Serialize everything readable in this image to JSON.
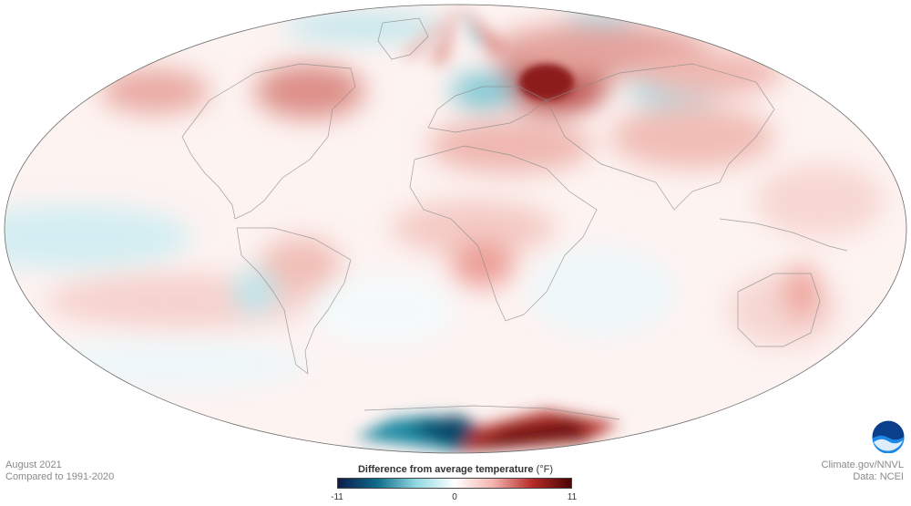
{
  "map": {
    "date_label": "August 2021",
    "baseline_label": "Compared to 1991-2020",
    "credit_source": "Climate.gov/NNVL",
    "credit_data": "Data: NCEI",
    "logo_text": "NOAA"
  },
  "legend": {
    "title_bold": "Difference from average temperature",
    "title_unit": "(°F)",
    "min_label": "-11",
    "mid_label": "0",
    "max_label": "11",
    "colors": [
      "#0b1c4a",
      "#0e6b8a",
      "#8fd8e2",
      "#ffffff",
      "#f3b3ae",
      "#b72a26",
      "#4a0505"
    ]
  }
}
